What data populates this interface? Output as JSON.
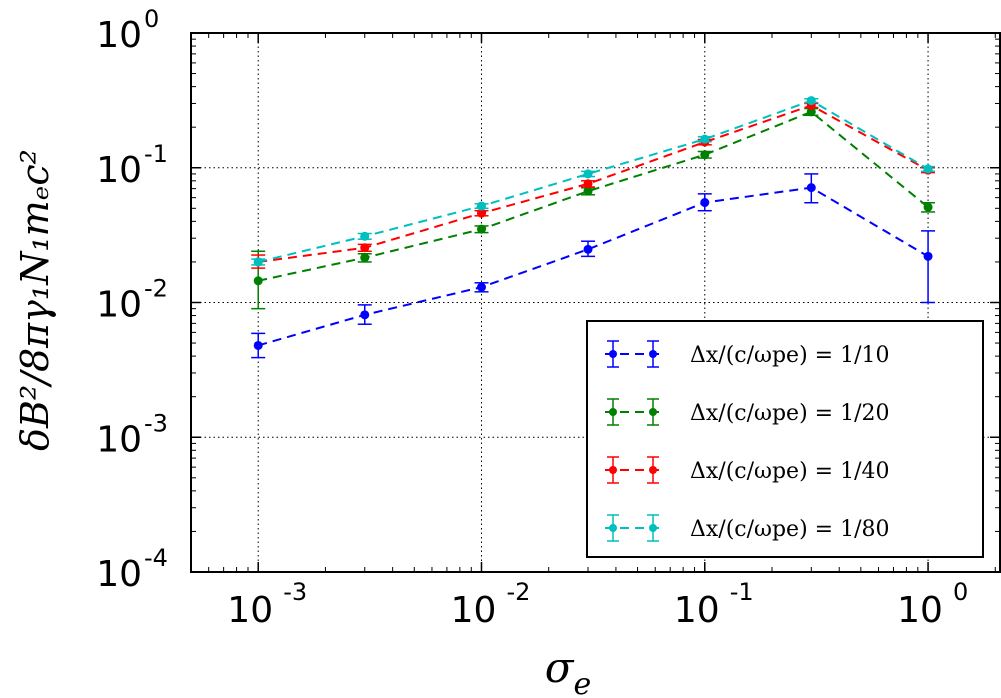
{
  "chart_data": {
    "type": "scatter",
    "x_scale": "log",
    "y_scale": "log",
    "xlim": [
      0.0005,
      2.1
    ],
    "ylim": [
      0.0001,
      1
    ],
    "grid": true,
    "legend_position": "lower-right",
    "xlabel": "σ",
    "xlabel_sub": "e",
    "ylabel": "δB²/8πγ₁N₁mₑc²",
    "x_ticks": [
      {
        "value": 0.001,
        "base": "10",
        "exp": "-3"
      },
      {
        "value": 0.01,
        "base": "10",
        "exp": "-2"
      },
      {
        "value": 0.1,
        "base": "10",
        "exp": "-1"
      },
      {
        "value": 1,
        "base": "10",
        "exp": "0"
      }
    ],
    "y_ticks": [
      {
        "value": 0.0001,
        "base": "10",
        "exp": "-4"
      },
      {
        "value": 0.001,
        "base": "10",
        "exp": "-3"
      },
      {
        "value": 0.01,
        "base": "10",
        "exp": "-2"
      },
      {
        "value": 0.1,
        "base": "10",
        "exp": "-1"
      },
      {
        "value": 1,
        "base": "10",
        "exp": "0"
      }
    ],
    "x": [
      0.001,
      0.003,
      0.01,
      0.03,
      0.1,
      0.3,
      1.0
    ],
    "series": [
      {
        "name": "Δx/(c/ω_pe) = 1/10",
        "legend_label": "Δx/(c/ωpe) = 1/10",
        "color": "#0000ff",
        "values": [
          0.0048,
          0.0081,
          0.013,
          0.0248,
          0.0552,
          0.0712,
          0.022
        ],
        "err_low": [
          0.0039,
          0.0069,
          0.012,
          0.022,
          0.048,
          0.055,
          0.01
        ],
        "err_high": [
          0.0059,
          0.0096,
          0.014,
          0.0285,
          0.064,
          0.09,
          0.034
        ]
      },
      {
        "name": "Δx/(c/ω_pe) = 1/20",
        "legend_label": "Δx/(c/ωpe) = 1/20",
        "color": "#008000",
        "values": [
          0.0145,
          0.0215,
          0.035,
          0.067,
          0.125,
          0.26,
          0.051
        ],
        "err_low": [
          0.009,
          0.02,
          0.033,
          0.063,
          0.118,
          0.245,
          0.047
        ],
        "err_high": [
          0.024,
          0.023,
          0.037,
          0.071,
          0.132,
          0.275,
          0.055
        ]
      },
      {
        "name": "Δx/(c/ω_pe) = 1/40",
        "legend_label": "Δx/(c/ωpe) = 1/40",
        "color": "#ff0000",
        "values": [
          0.02,
          0.0255,
          0.046,
          0.076,
          0.155,
          0.29,
          0.096
        ],
        "err_low": [
          0.018,
          0.024,
          0.044,
          0.072,
          0.148,
          0.28,
          0.092
        ],
        "err_high": [
          0.0225,
          0.027,
          0.048,
          0.08,
          0.162,
          0.3,
          0.1
        ]
      },
      {
        "name": "Δx/(c/ω_pe) = 1/80",
        "legend_label": "Δx/(c/ωpe) = 1/80",
        "color": "#00bfbf",
        "values": [
          0.02,
          0.031,
          0.052,
          0.09,
          0.163,
          0.315,
          0.098
        ],
        "err_low": [
          0.019,
          0.0295,
          0.05,
          0.086,
          0.156,
          0.305,
          0.094
        ],
        "err_high": [
          0.021,
          0.0325,
          0.054,
          0.094,
          0.17,
          0.325,
          0.102
        ]
      }
    ]
  }
}
